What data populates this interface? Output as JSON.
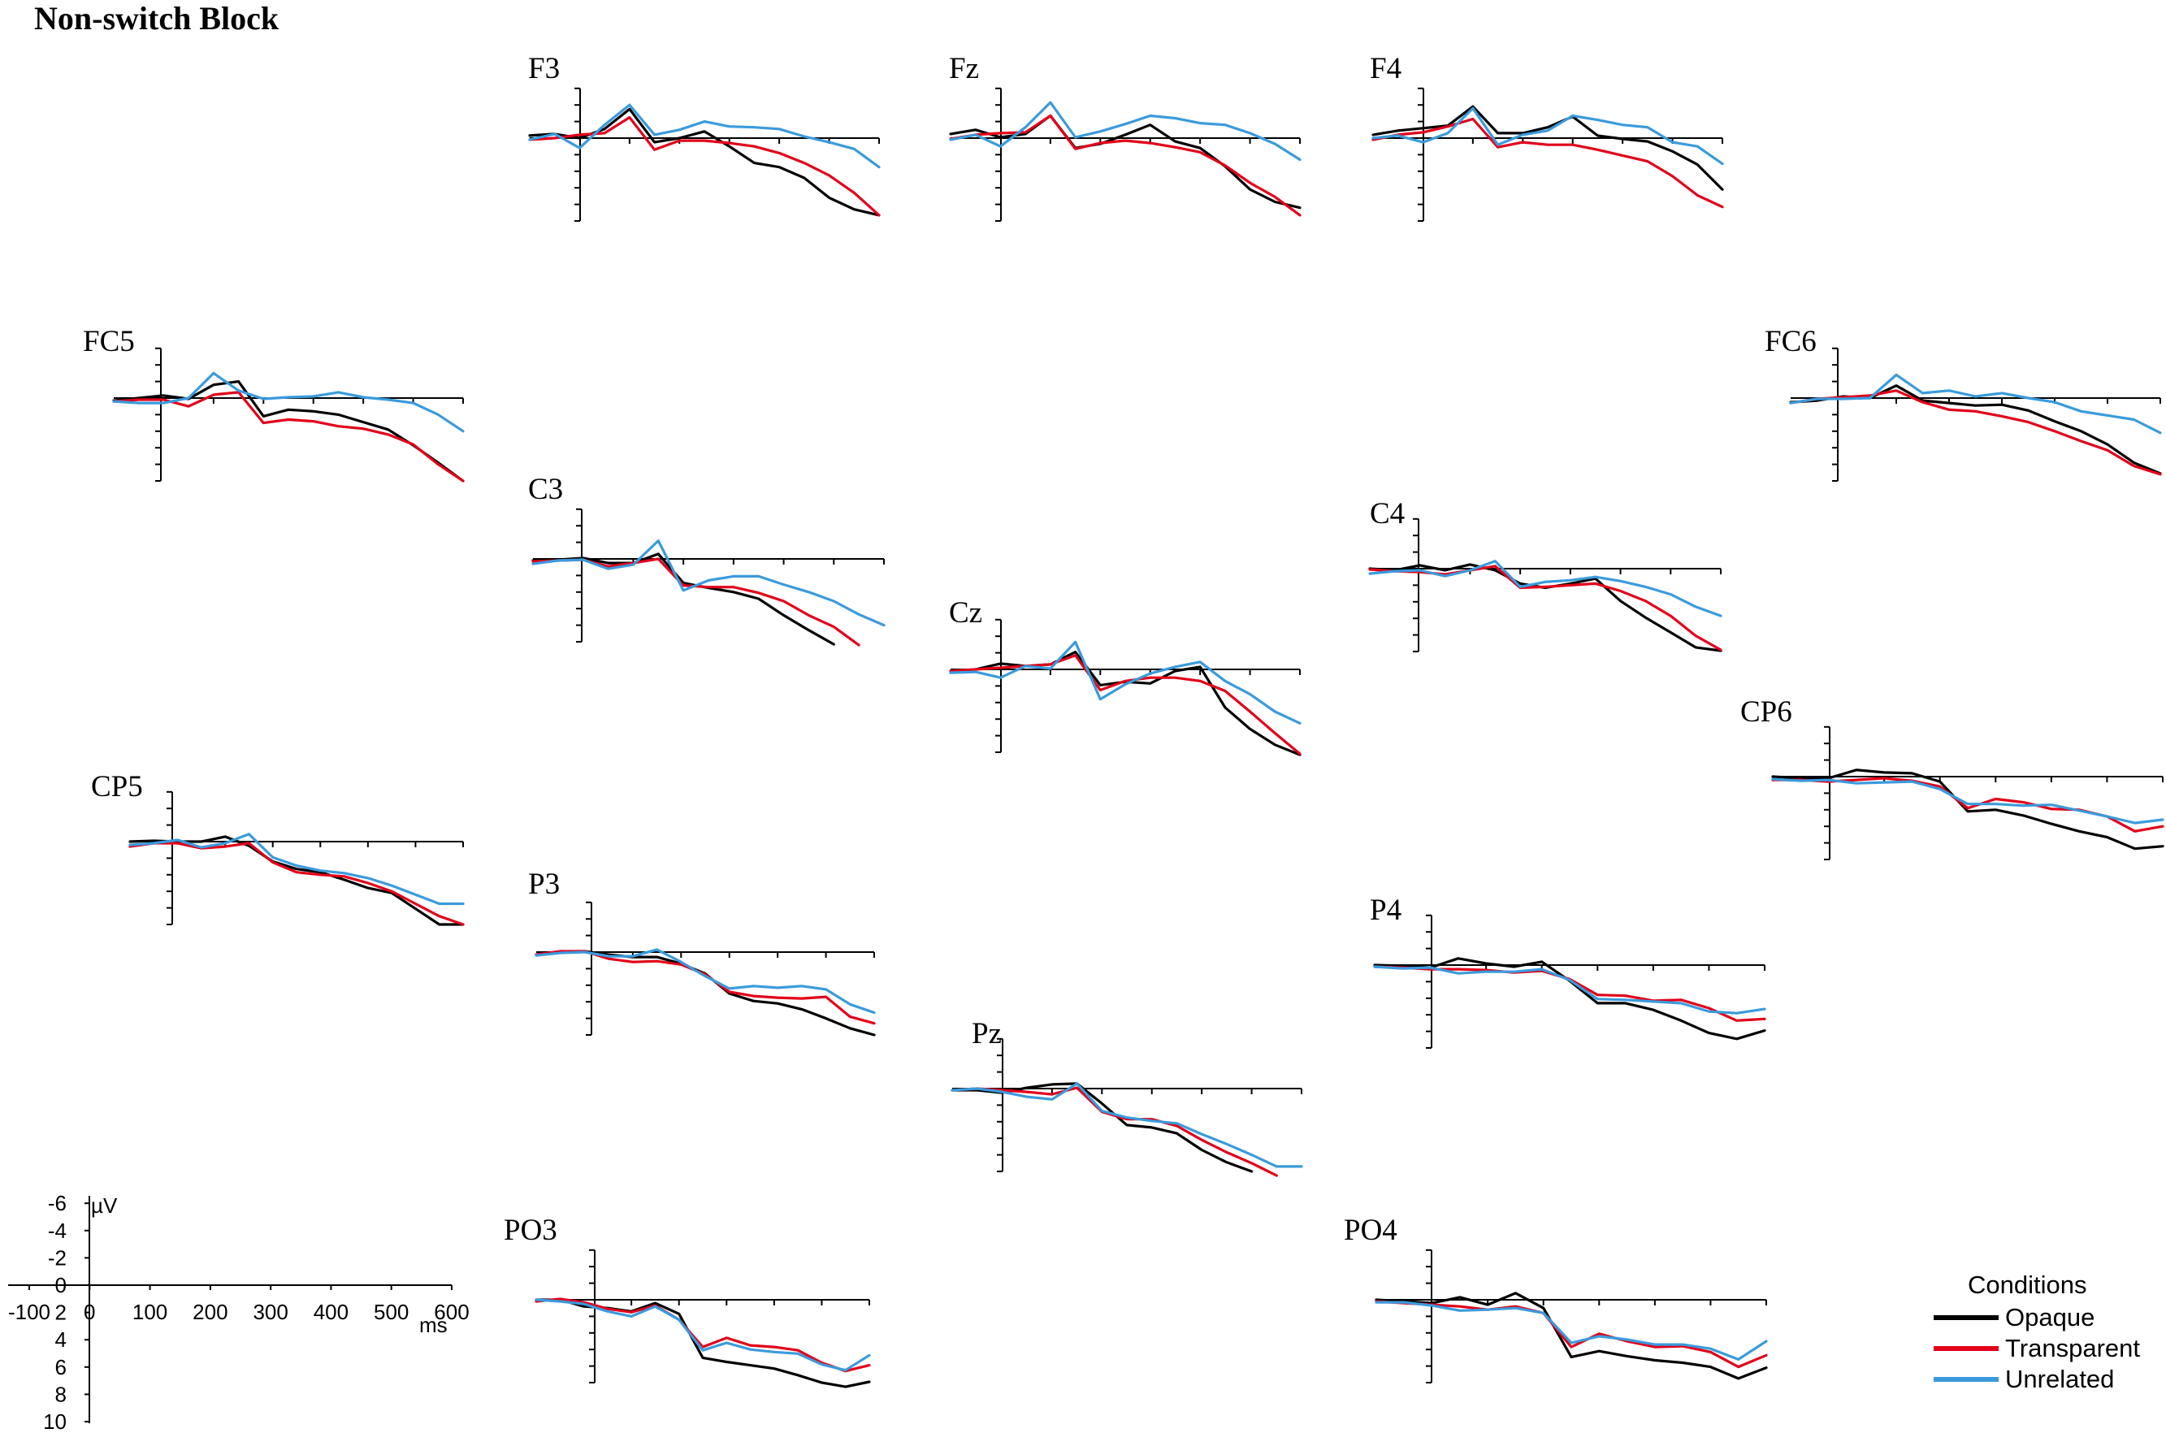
{
  "chart_data": {
    "type": "line",
    "title": "Non-switch Block",
    "x_unit": "ms",
    "y_unit": "µV",
    "xlim": [
      -100,
      600
    ],
    "ylim": [
      -6,
      10
    ],
    "y_axis_inverted": true,
    "legend": {
      "title": "Conditions",
      "position": "bottom-right",
      "entries": [
        {
          "name": "Opaque",
          "color": "#000000"
        },
        {
          "name": "Transparent",
          "color": "#e2001a"
        },
        {
          "name": "Unrelated",
          "color": "#3a9bdc"
        }
      ]
    },
    "scale": {
      "y_ticks": [
        "-6",
        "-4",
        "-2",
        "0",
        "2",
        "4",
        "6",
        "8",
        "10"
      ],
      "x_ticks": [
        "-100",
        "0",
        "100",
        "200",
        "300",
        "400",
        "500",
        "600"
      ],
      "y_unit": "µV",
      "x_unit": "ms"
    },
    "time_points_ms": [
      -100,
      -50,
      0,
      50,
      100,
      150,
      200,
      250,
      300,
      350,
      400,
      450,
      500,
      550,
      600
    ],
    "channels": [
      {
        "name": "F3",
        "series": [
          {
            "name": "Opaque",
            "values": [
              -0.3,
              -0.5,
              0.0,
              -1.1,
              -3.5,
              0.5,
              0.0,
              -0.8,
              1.0,
              3.0,
              3.5,
              4.8,
              7.2,
              8.6,
              9.3
            ]
          },
          {
            "name": "Transparent",
            "values": [
              0.2,
              0.0,
              -0.4,
              -0.6,
              -2.5,
              1.4,
              0.3,
              0.3,
              0.6,
              1.0,
              1.8,
              3.0,
              4.5,
              6.6,
              9.3
            ]
          },
          {
            "name": "Unrelated",
            "values": [
              0.2,
              -0.5,
              1.2,
              -1.6,
              -4.0,
              -0.4,
              -1.0,
              -2.0,
              -1.4,
              -1.3,
              -1.1,
              -0.2,
              0.5,
              1.3,
              3.5
            ]
          }
        ]
      },
      {
        "name": "Fz",
        "series": [
          {
            "name": "Opaque",
            "values": [
              -0.5,
              -1.0,
              -0.1,
              -0.5,
              -2.7,
              1.2,
              0.7,
              -0.4,
              -1.6,
              0.4,
              1.2,
              3.4,
              6.2,
              7.7,
              8.4
            ]
          },
          {
            "name": "Transparent",
            "values": [
              0.1,
              -0.4,
              -0.6,
              -0.7,
              -2.7,
              1.3,
              0.6,
              0.3,
              0.6,
              1.1,
              1.7,
              3.3,
              5.4,
              7.1,
              9.3
            ]
          },
          {
            "name": "Unrelated",
            "values": [
              0.2,
              -0.4,
              1.0,
              -1.3,
              -4.3,
              -0.1,
              -0.8,
              -1.7,
              -2.7,
              -2.4,
              -1.8,
              -1.6,
              -0.6,
              0.7,
              2.6
            ]
          }
        ]
      },
      {
        "name": "F4",
        "series": [
          {
            "name": "Opaque",
            "values": [
              -0.4,
              -0.9,
              -1.2,
              -1.5,
              -3.8,
              -0.6,
              -0.6,
              -1.3,
              -2.6,
              -0.3,
              0.1,
              0.4,
              1.6,
              3.2,
              6.2
            ]
          },
          {
            "name": "Transparent",
            "values": [
              0.2,
              -0.4,
              -0.7,
              -1.4,
              -2.3,
              1.1,
              0.5,
              0.8,
              0.8,
              1.4,
              2.1,
              2.8,
              4.6,
              6.9,
              8.3
            ]
          },
          {
            "name": "Unrelated",
            "values": [
              0.0,
              -0.3,
              0.5,
              -0.6,
              -3.6,
              0.8,
              -0.4,
              -0.9,
              -2.7,
              -2.2,
              -1.6,
              -1.3,
              0.5,
              1.0,
              3.1
            ]
          }
        ]
      },
      {
        "name": "FC5",
        "series": [
          {
            "name": "Opaque",
            "values": [
              0.3,
              0.0,
              -0.3,
              0.1,
              -1.6,
              -2.0,
              2.2,
              1.4,
              1.6,
              2.0,
              2.9,
              3.8,
              5.7,
              7.8,
              10.0
            ]
          },
          {
            "name": "Transparent",
            "values": [
              0.4,
              0.2,
              0.2,
              1.0,
              -0.4,
              -0.7,
              3.0,
              2.6,
              2.8,
              3.4,
              3.7,
              4.4,
              5.6,
              8.0,
              10.0
            ]
          },
          {
            "name": "Unrelated",
            "values": [
              0.4,
              0.6,
              0.6,
              0.0,
              -3.0,
              -0.9,
              0.1,
              -0.1,
              -0.2,
              -0.7,
              -0.1,
              0.2,
              0.6,
              2.0,
              4.0
            ]
          }
        ]
      },
      {
        "name": "FC6",
        "series": [
          {
            "name": "Opaque",
            "values": [
              0.5,
              0.3,
              -0.2,
              0.0,
              -1.5,
              0.3,
              0.6,
              0.9,
              0.8,
              1.5,
              2.8,
              4.0,
              5.6,
              7.8,
              9.1
            ]
          },
          {
            "name": "Transparent",
            "values": [
              0.6,
              0.1,
              -0.1,
              -0.3,
              -0.9,
              0.5,
              1.4,
              1.6,
              2.2,
              2.9,
              4.0,
              5.2,
              6.3,
              8.2,
              9.2
            ]
          },
          {
            "name": "Unrelated",
            "values": [
              0.6,
              0.1,
              0.1,
              0.0,
              -2.8,
              -0.6,
              -0.9,
              -0.2,
              -0.6,
              0.0,
              0.5,
              1.6,
              2.1,
              2.6,
              4.2
            ]
          }
        ]
      },
      {
        "name": "C3",
        "series": [
          {
            "name": "Opaque",
            "values": [
              0.2,
              0.1,
              -0.1,
              0.5,
              0.5,
              -0.6,
              2.9,
              3.5,
              4.0,
              4.8,
              6.8,
              8.6,
              10.3,
              null,
              null
            ]
          },
          {
            "name": "Transparent",
            "values": [
              0.3,
              0.2,
              0.1,
              0.9,
              0.5,
              0.0,
              3.2,
              3.4,
              3.4,
              4.1,
              5.1,
              6.8,
              8.2,
              10.4,
              null
            ]
          },
          {
            "name": "Unrelated",
            "values": [
              0.6,
              0.2,
              0.1,
              1.2,
              0.7,
              -2.2,
              3.8,
              2.6,
              2.1,
              2.1,
              3.1,
              4.0,
              5.1,
              6.7,
              8.0
            ]
          }
        ]
      },
      {
        "name": "C4",
        "series": [
          {
            "name": "Opaque",
            "values": [
              0.0,
              0.2,
              -0.4,
              0.2,
              -0.5,
              0.2,
              1.8,
              2.3,
              1.8,
              1.2,
              3.9,
              5.9,
              7.7,
              9.5,
              9.9
            ]
          },
          {
            "name": "Transparent",
            "values": [
              0.1,
              0.3,
              0.4,
              0.7,
              0.2,
              -0.3,
              2.3,
              2.2,
              2.0,
              1.8,
              2.7,
              3.9,
              5.7,
              8.1,
              9.8
            ]
          },
          {
            "name": "Unrelated",
            "values": [
              0.6,
              0.3,
              0.2,
              0.9,
              0.2,
              -0.9,
              2.2,
              1.6,
              1.4,
              1.0,
              1.5,
              2.2,
              3.1,
              4.6,
              5.7
            ]
          }
        ]
      },
      {
        "name": "Cz",
        "series": [
          {
            "name": "Opaque",
            "values": [
              0.3,
              0.0,
              -0.7,
              -0.4,
              -0.6,
              -2.1,
              1.9,
              1.5,
              1.7,
              0.2,
              -0.3,
              4.6,
              7.2,
              9.1,
              10.3
            ]
          },
          {
            "name": "Transparent",
            "values": [
              0.2,
              0.0,
              -0.2,
              -0.4,
              -0.6,
              -1.7,
              2.5,
              1.4,
              1.0,
              1.0,
              1.4,
              2.6,
              5.1,
              7.7,
              10.2
            ]
          },
          {
            "name": "Unrelated",
            "values": [
              0.4,
              0.3,
              1.0,
              -0.4,
              -0.1,
              -3.3,
              3.6,
              1.8,
              0.5,
              -0.3,
              -0.9,
              1.4,
              3.0,
              5.1,
              6.5
            ]
          }
        ]
      },
      {
        "name": "CP5",
        "series": [
          {
            "name": "Opaque",
            "values": [
              0.0,
              -0.1,
              0.0,
              0.0,
              -0.6,
              0.5,
              2.4,
              3.3,
              3.7,
              4.6,
              5.6,
              6.2,
              8.1,
              10.0,
              10.0
            ]
          },
          {
            "name": "Transparent",
            "values": [
              0.6,
              0.2,
              0.2,
              0.8,
              0.6,
              0.2,
              2.5,
              3.7,
              4.0,
              4.2,
              5.0,
              6.0,
              7.5,
              9.0,
              10.0
            ]
          },
          {
            "name": "Unrelated",
            "values": [
              0.4,
              0.2,
              -0.2,
              0.7,
              0.2,
              -0.9,
              1.9,
              2.9,
              3.5,
              3.8,
              4.4,
              5.3,
              6.4,
              7.5,
              7.5
            ]
          }
        ]
      },
      {
        "name": "CP6",
        "series": [
          {
            "name": "Opaque",
            "values": [
              0.0,
              0.2,
              0.2,
              -0.8,
              -0.5,
              -0.4,
              0.6,
              4.2,
              4.0,
              4.7,
              5.7,
              6.6,
              7.3,
              8.7,
              8.4
            ]
          },
          {
            "name": "Transparent",
            "values": [
              0.4,
              0.4,
              0.6,
              0.4,
              0.2,
              0.5,
              1.2,
              3.8,
              2.7,
              3.1,
              3.9,
              4.0,
              4.8,
              6.6,
              6.0
            ]
          },
          {
            "name": "Unrelated",
            "values": [
              0.3,
              0.5,
              0.4,
              0.8,
              0.7,
              0.6,
              1.5,
              3.3,
              3.3,
              3.5,
              3.4,
              4.1,
              4.8,
              5.6,
              5.2
            ]
          }
        ]
      },
      {
        "name": "P3",
        "series": [
          {
            "name": "Opaque",
            "values": [
              0.3,
              0.0,
              -0.1,
              0.3,
              0.6,
              0.6,
              1.4,
              2.6,
              5.0,
              5.9,
              6.2,
              6.9,
              8.0,
              9.2,
              10.0
            ]
          },
          {
            "name": "Transparent",
            "values": [
              0.3,
              -0.1,
              -0.1,
              0.8,
              1.2,
              1.1,
              1.5,
              2.7,
              4.8,
              5.3,
              5.5,
              5.6,
              5.4,
              7.8,
              8.6
            ]
          },
          {
            "name": "Unrelated",
            "values": [
              0.4,
              0.1,
              0.0,
              0.5,
              0.5,
              -0.3,
              1.2,
              2.9,
              4.4,
              4.1,
              4.3,
              4.1,
              4.5,
              6.3,
              7.3
            ]
          }
        ]
      },
      {
        "name": "P4",
        "series": [
          {
            "name": "Opaque",
            "values": [
              0.0,
              0.1,
              0.3,
              -0.8,
              -0.2,
              0.2,
              -0.4,
              1.9,
              4.6,
              4.6,
              5.4,
              6.7,
              8.2,
              8.9,
              7.9
            ]
          },
          {
            "name": "Transparent",
            "values": [
              0.2,
              0.3,
              0.5,
              0.5,
              0.6,
              0.9,
              0.7,
              1.7,
              3.6,
              3.7,
              4.3,
              4.2,
              5.2,
              6.7,
              6.5
            ]
          },
          {
            "name": "Unrelated",
            "values": [
              0.2,
              0.4,
              0.3,
              1.0,
              0.8,
              0.8,
              0.5,
              1.8,
              4.1,
              4.2,
              4.4,
              4.6,
              5.6,
              5.8,
              5.3
            ]
          }
        ]
      },
      {
        "name": "Pz",
        "series": [
          {
            "name": "Opaque",
            "values": [
              0.2,
              0.2,
              0.5,
              -0.1,
              -0.5,
              -0.6,
              1.8,
              4.4,
              4.7,
              5.4,
              7.4,
              8.9,
              10.0,
              null,
              null
            ]
          },
          {
            "name": "Transparent",
            "values": [
              0.2,
              0.0,
              0.2,
              0.4,
              0.7,
              -0.1,
              2.8,
              3.7,
              3.7,
              4.5,
              6.2,
              7.7,
              9.0,
              10.5,
              null
            ]
          },
          {
            "name": "Unrelated",
            "values": [
              0.2,
              0.0,
              0.4,
              1.0,
              1.3,
              -0.6,
              2.7,
              3.5,
              3.9,
              4.2,
              5.5,
              6.7,
              8.0,
              9.4,
              9.4
            ]
          }
        ]
      },
      {
        "name": "PO3",
        "series": [
          {
            "name": "Opaque",
            "values": [
              0.0,
              0.0,
              0.8,
              1.0,
              1.4,
              0.4,
              1.7,
              7.0,
              7.5,
              7.9,
              8.3,
              9.1,
              10.0,
              10.5,
              9.9
            ]
          },
          {
            "name": "Transparent",
            "values": [
              0.2,
              -0.1,
              0.3,
              1.1,
              1.5,
              0.7,
              2.4,
              5.7,
              4.6,
              5.5,
              5.7,
              6.1,
              7.6,
              8.6,
              7.9
            ]
          },
          {
            "name": "Unrelated",
            "values": [
              0.0,
              0.2,
              0.5,
              1.4,
              2.0,
              0.8,
              2.4,
              6.1,
              5.2,
              6.0,
              6.3,
              6.5,
              7.8,
              8.5,
              6.7
            ]
          }
        ]
      },
      {
        "name": "PO4",
        "series": [
          {
            "name": "Opaque",
            "values": [
              0.0,
              0.2,
              0.4,
              -0.3,
              0.6,
              -0.8,
              1.0,
              6.9,
              6.2,
              6.8,
              7.3,
              7.6,
              8.1,
              9.5,
              8.2
            ]
          },
          {
            "name": "Transparent",
            "values": [
              0.2,
              0.4,
              0.6,
              0.8,
              1.2,
              0.8,
              1.6,
              5.7,
              4.1,
              5.0,
              5.7,
              5.6,
              6.3,
              8.1,
              6.7
            ]
          },
          {
            "name": "Unrelated",
            "values": [
              0.3,
              0.3,
              0.7,
              1.3,
              1.2,
              1.0,
              1.6,
              5.2,
              4.4,
              4.8,
              5.4,
              5.4,
              5.9,
              7.2,
              5.0
            ]
          }
        ]
      }
    ]
  }
}
